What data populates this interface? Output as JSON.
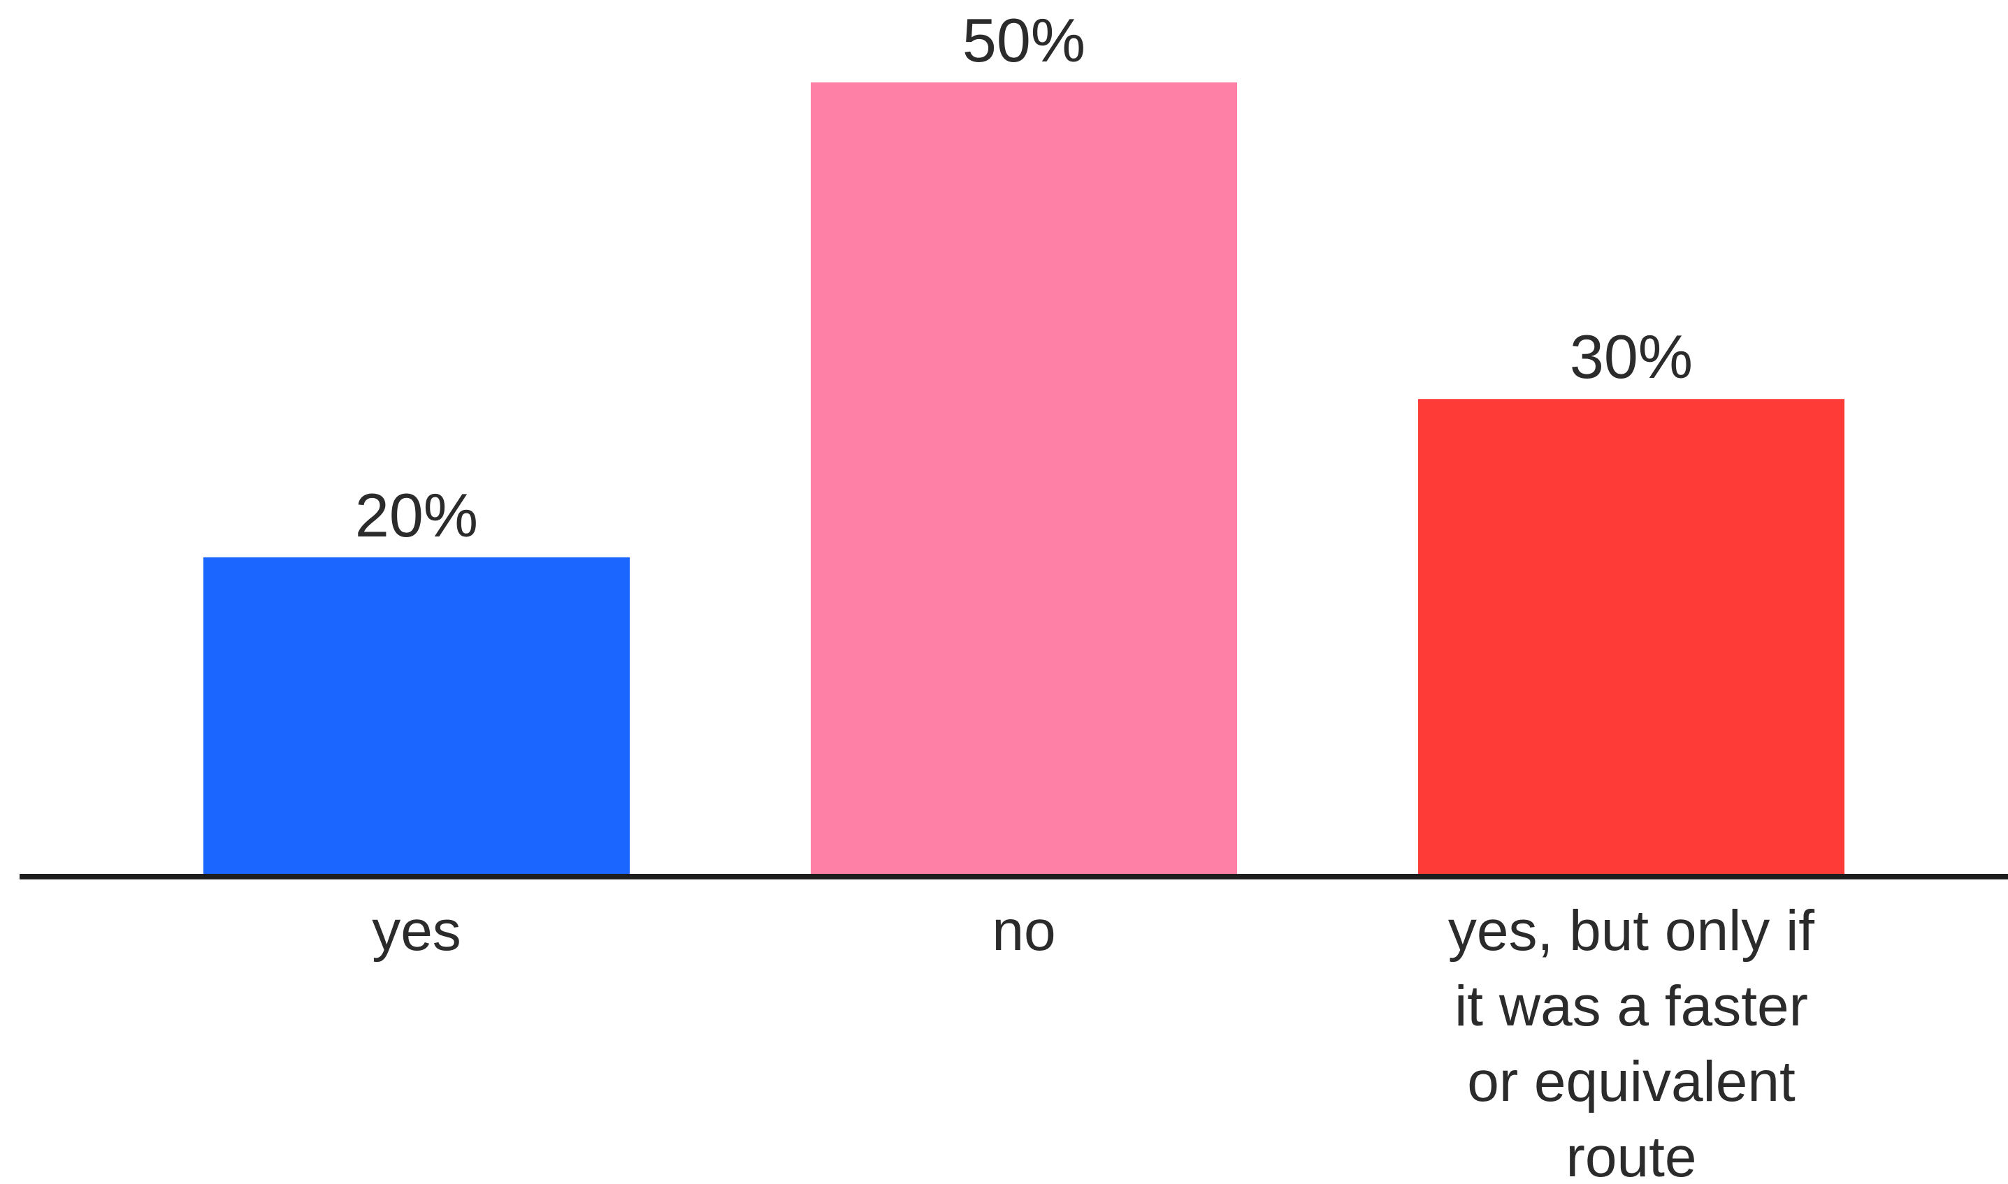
{
  "chart_data": {
    "type": "bar",
    "title": "",
    "xlabel": "",
    "ylabel": "",
    "categories": [
      [
        "yes"
      ],
      [
        "no"
      ],
      [
        "yes, but only if",
        "it was a faster",
        "or equivalent",
        "route"
      ]
    ],
    "values": [
      20,
      50,
      30
    ],
    "value_labels": [
      "20%",
      "50%",
      "30%"
    ],
    "colors": [
      "#1a66ff",
      "#ff80a6",
      "#ff3b38"
    ],
    "ylim": [
      0,
      50
    ],
    "grid": false,
    "legend": "none"
  }
}
